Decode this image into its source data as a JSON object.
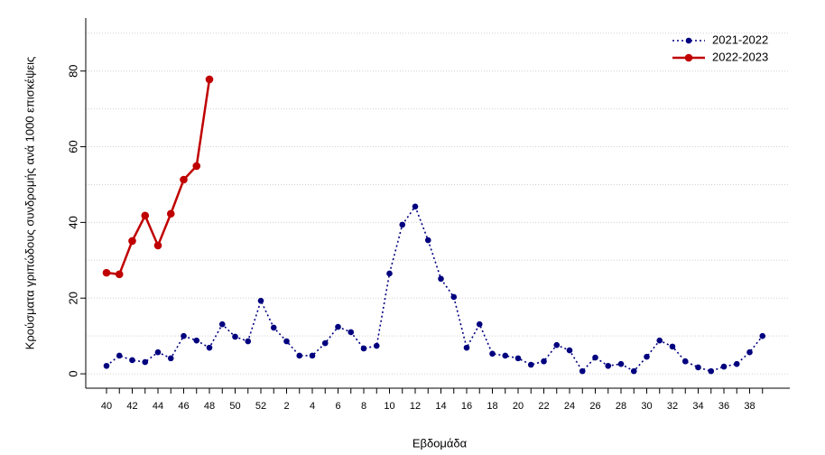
{
  "chart_data": {
    "type": "line",
    "xlabel": "Εβδομάδα",
    "ylabel": "Κρούσματα γριπώδους συνδρομής ανά 1000 επισκέψεις",
    "categories": [
      "40",
      null,
      "42",
      null,
      "44",
      null,
      "46",
      null,
      "48",
      null,
      "50",
      null,
      "52",
      null,
      "2",
      null,
      "4",
      null,
      "6",
      null,
      "8",
      null,
      "10",
      null,
      "12",
      null,
      "14",
      null,
      "16",
      null,
      "18",
      null,
      "20",
      null,
      "22",
      null,
      "24",
      null,
      "26",
      null,
      "28",
      null,
      "30",
      null,
      "32",
      null,
      "34",
      null,
      "36",
      null,
      "38",
      null
    ],
    "series": [
      {
        "name": "2021-2022",
        "color": "#00007f",
        "linestyle": "dotted",
        "values": [
          2.1,
          4.8,
          3.6,
          3.1,
          5.7,
          4.1,
          10.0,
          8.8,
          6.9,
          13.1,
          9.8,
          8.6,
          19.3,
          12.2,
          8.6,
          4.8,
          4.8,
          8.1,
          12.4,
          11.0,
          6.7,
          7.4,
          26.5,
          39.4,
          44.2,
          35.3,
          25.1,
          20.3,
          6.9,
          13.1,
          5.3,
          4.8,
          4.1,
          2.4,
          3.3,
          7.6,
          6.2,
          0.7,
          4.3,
          2.1,
          2.6,
          0.7,
          4.5,
          8.8,
          7.2,
          3.3,
          1.7,
          0.7,
          1.9,
          2.6,
          5.7,
          10.0
        ]
      },
      {
        "name": "2022-2023",
        "color": "#c00000",
        "linestyle": "solid",
        "values": [
          26.7,
          26.3,
          35.1,
          41.8,
          33.9,
          42.3,
          51.3,
          54.9,
          77.8,
          null,
          null,
          null,
          null,
          null,
          null,
          null,
          null,
          null,
          null,
          null,
          null,
          null,
          null,
          null,
          null,
          null,
          null,
          null,
          null,
          null,
          null,
          null,
          null,
          null,
          null,
          null,
          null,
          null,
          null,
          null,
          null,
          null,
          null,
          null,
          null,
          null,
          null,
          null,
          null,
          null,
          null,
          null
        ]
      }
    ],
    "ylim": [
      -3.8,
      94
    ],
    "yticks": [
      0,
      20,
      40,
      60,
      80
    ],
    "ygrid": [
      0,
      10,
      20,
      30,
      40,
      50,
      60,
      70,
      80,
      90
    ],
    "grid": true,
    "legend": "top-right"
  }
}
